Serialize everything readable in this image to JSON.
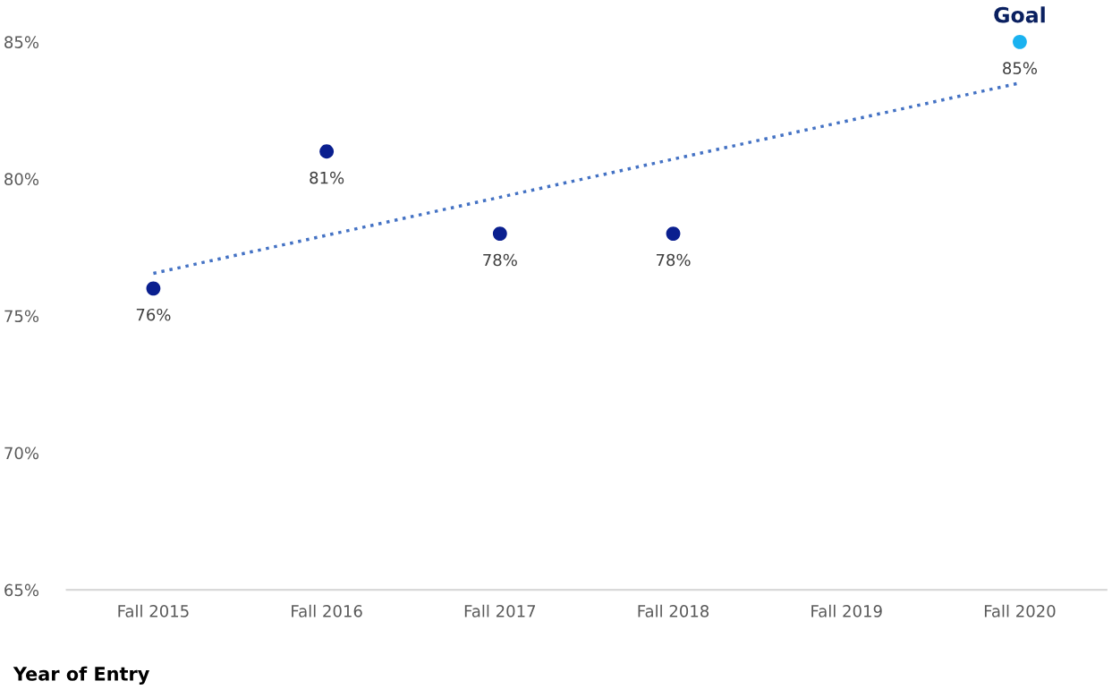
{
  "chart_data": {
    "type": "scatter",
    "xlabel": "Year of Entry",
    "categories": [
      "Fall 2015",
      "Fall 2016",
      "Fall 2017",
      "Fall 2018",
      "Fall 2019",
      "Fall 2020"
    ],
    "series": [
      {
        "color": "#0a1f8f",
        "values": [
          76,
          81,
          78,
          78,
          null,
          null
        ],
        "value_labels": [
          "76%",
          "81%",
          "78%",
          "78%",
          null,
          null
        ]
      },
      {
        "name": "Goal",
        "color": "#1ab2f0",
        "values": [
          null,
          null,
          null,
          null,
          null,
          85
        ],
        "value_labels": [
          null,
          null,
          null,
          null,
          null,
          "85%"
        ]
      },
      {
        "type": "line",
        "color": "#4472c4",
        "line_style": "dotted",
        "marker": "none",
        "x": [
          "Fall 2015",
          "Fall 2020"
        ],
        "values": [
          76.55,
          83.5
        ]
      }
    ],
    "ylim": [
      65,
      85
    ],
    "yticks": [
      {
        "value": 65,
        "label": "65%"
      },
      {
        "value": 70,
        "label": "70%"
      },
      {
        "value": 75,
        "label": "75%"
      },
      {
        "value": 80,
        "label": "80%"
      },
      {
        "value": 85,
        "label": "85%"
      }
    ],
    "marker": "circle",
    "grid": false,
    "legend": false
  }
}
